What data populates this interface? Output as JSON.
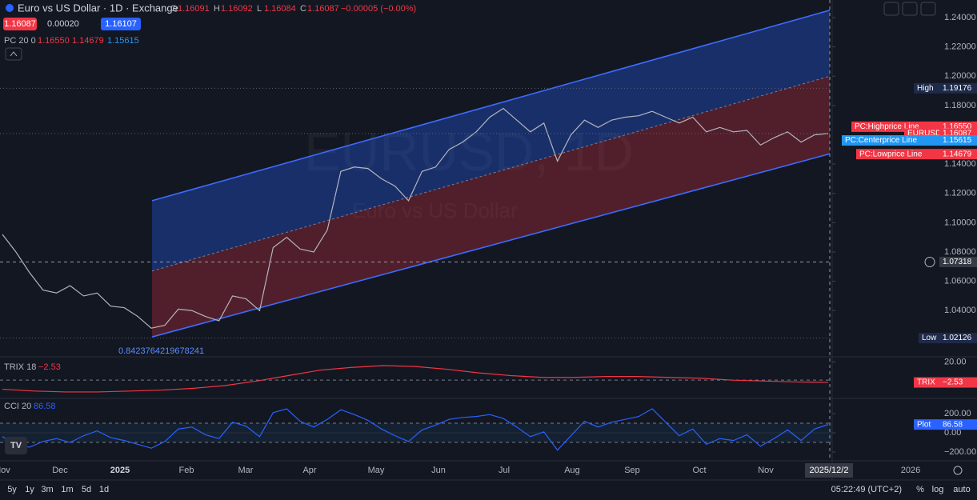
{
  "header": {
    "title": "Euro vs US Dollar · 1D · Exchange",
    "ohlc": [
      {
        "label": "O",
        "value": "1.16091"
      },
      {
        "label": "H",
        "value": "1.16092"
      },
      {
        "label": "L",
        "value": "1.16084"
      },
      {
        "label": "C",
        "value": "1.16087"
      }
    ],
    "change": "−0.00005 (−0.00%)",
    "bid": "1.16087",
    "spread": "0.00020",
    "ask": "1.16107"
  },
  "indicator_legend": {
    "name": "PC 20 0",
    "values": [
      "1.16550",
      "1.14679",
      "1.15615"
    ]
  },
  "watermark": {
    "symbol": "EURUSD, 1D",
    "description": "Euro vs US Dollar"
  },
  "annotation": "0.8423764219678241",
  "time_axis": {
    "labels": [
      "Nov",
      "Dec",
      "2025",
      "Feb",
      "Mar",
      "Apr",
      "May",
      "Jun",
      "Jul",
      "Aug",
      "Sep",
      "Oct",
      "Nov",
      "2026"
    ],
    "cursor": "2025/12/2"
  },
  "toolbar": {
    "ranges": [
      "5y",
      "1y",
      "3m",
      "1m",
      "5d",
      "1d"
    ],
    "clock": "05:22:49 (UTC+2)",
    "options": [
      "%",
      "log",
      "auto"
    ]
  },
  "chart_data": [
    {
      "type": "line",
      "series": [
        {
          "color": "#b2b5be",
          "values": [
            1.092,
            1.08,
            1.066,
            1.054,
            1.052,
            1.057,
            1.05,
            1.052,
            1.043,
            1.042,
            1.036,
            1.028,
            1.03,
            1.041,
            1.04,
            1.036,
            1.033,
            1.05,
            1.048,
            1.04,
            1.083,
            1.09,
            1.082,
            1.08,
            1.095,
            1.135,
            1.138,
            1.137,
            1.13,
            1.125,
            1.115,
            1.135,
            1.138,
            1.15,
            1.155,
            1.162,
            1.172,
            1.178,
            1.17,
            1.162,
            1.168,
            1.142,
            1.16,
            1.17,
            1.165,
            1.17,
            1.172,
            1.173,
            1.176,
            1.172,
            1.168,
            1.172,
            1.162,
            1.165,
            1.162,
            1.163,
            1.153,
            1.158,
            1.162,
            1.155,
            1.16,
            1.16087
          ]
        }
      ],
      "channel": {
        "upper": [
          1.115,
          1.245
        ],
        "center": [
          1.067,
          1.2
        ],
        "lower": [
          1.022,
          1.147
        ]
      },
      "ylim": [
        1.009,
        1.252
      ],
      "yticks": [
        {
          "value": 1.24,
          "label": "1.24000"
        },
        {
          "value": 1.22,
          "label": "1.22000"
        },
        {
          "value": 1.2,
          "label": "1.20000"
        },
        {
          "value": 1.18,
          "label": "1.18000"
        },
        {
          "value": 1.14,
          "label": "1.14000"
        },
        {
          "value": 1.12,
          "label": "1.12000"
        },
        {
          "value": 1.1,
          "label": "1.10000"
        },
        {
          "value": 1.08,
          "label": "1.08000"
        },
        {
          "value": 1.06,
          "label": "1.06000"
        },
        {
          "value": 1.04,
          "label": "1.04000"
        }
      ],
      "crosshair": 1.07318,
      "markers": [
        {
          "name": "High",
          "value": 1.19176,
          "color": "#1e2a4a"
        },
        {
          "name": "PC:Highprice Line",
          "value": 1.1655,
          "label": "1.16550",
          "color": "#f23645"
        },
        {
          "name": "EURUSD",
          "value": 1.16087,
          "color": "#f23645"
        },
        {
          "name": "PC:Centerprice Line",
          "value": 1.15615,
          "color": "#2196f3"
        },
        {
          "name": "PC:Lowprice Line",
          "value": 1.14679,
          "color": "#f23645"
        },
        {
          "name": "Low",
          "value": 1.02126,
          "color": "#1e2a4a"
        }
      ]
    },
    {
      "type": "line",
      "title": "TRIX 18",
      "series": [
        {
          "color": "#f23645",
          "values": [
            -10,
            -12,
            -13,
            -13,
            -12,
            -11,
            -9,
            -6,
            -1,
            5,
            11,
            14,
            16,
            15,
            12,
            8,
            5,
            3,
            3,
            4,
            4,
            3,
            2,
            0,
            -1,
            -2,
            -2.53
          ]
        }
      ],
      "ylim": [
        -19.2,
        24.8
      ],
      "yticks": [
        {
          "value": 20,
          "label": "20.00"
        }
      ],
      "marker": {
        "name": "TRIX",
        "value": -2.53,
        "label": "−2.53",
        "color": "#f23645"
      }
    },
    {
      "type": "line",
      "title": "CCI 20",
      "series": [
        {
          "color": "#2962ff",
          "values": [
            -40,
            -120,
            -150,
            -90,
            -60,
            -100,
            -30,
            20,
            -50,
            -80,
            -120,
            -160,
            -90,
            40,
            60,
            -20,
            -60,
            110,
            70,
            -40,
            210,
            250,
            120,
            60,
            140,
            240,
            190,
            130,
            40,
            -30,
            -90,
            30,
            80,
            140,
            160,
            170,
            190,
            150,
            60,
            -40,
            10,
            -180,
            -30,
            120,
            60,
            110,
            140,
            170,
            250,
            110,
            -30,
            40,
            -120,
            -60,
            -80,
            -20,
            -140,
            -60,
            30,
            -80,
            40,
            86.58
          ]
        }
      ],
      "ylim": [
        -283,
        350
      ],
      "yticks": [
        {
          "value": 200,
          "label": "200.00"
        },
        {
          "value": 0,
          "label": "0.00"
        },
        {
          "value": -200,
          "label": "−200.00"
        }
      ],
      "band": [
        -100,
        100
      ],
      "marker": {
        "name": "Plot",
        "value": 86.58,
        "color": "#2962ff"
      }
    }
  ]
}
